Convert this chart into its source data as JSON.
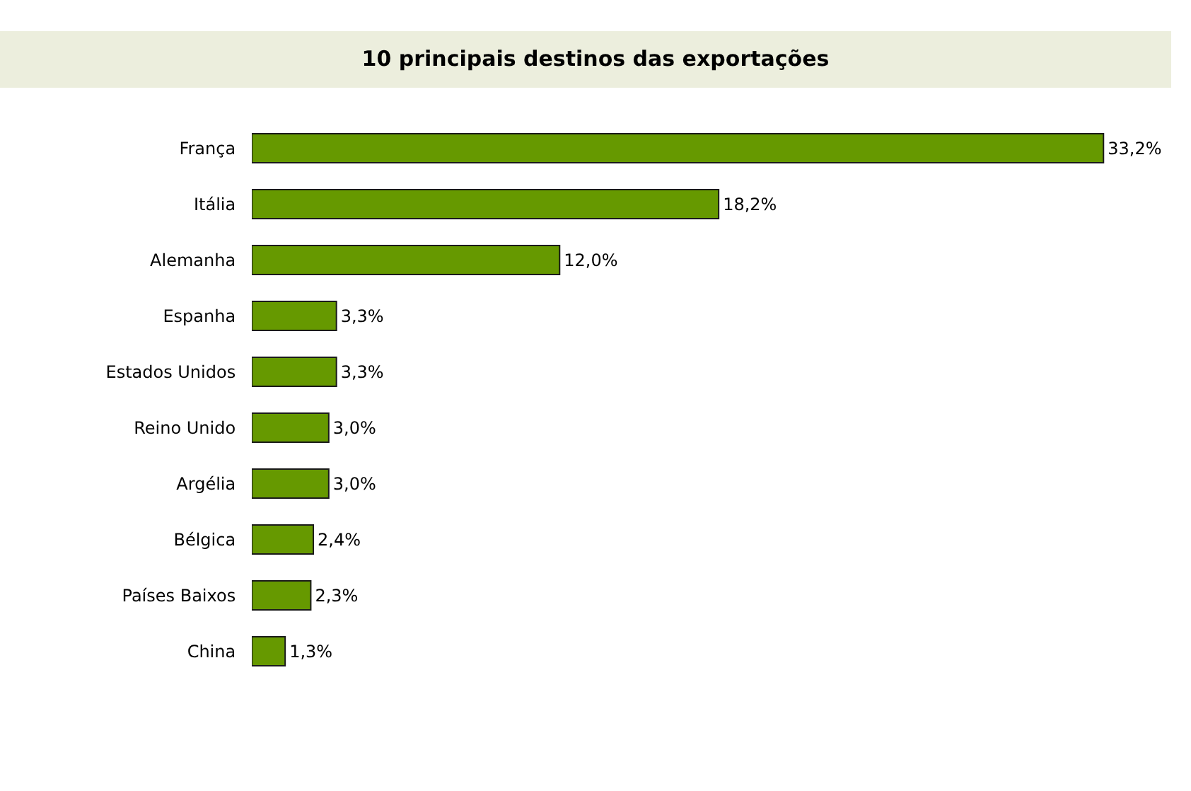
{
  "chart_data": {
    "type": "bar",
    "orientation": "horizontal",
    "title": "10 principais destinos das exportações",
    "categories": [
      "França",
      "Itália",
      "Alemanha",
      "Espanha",
      "Estados Unidos",
      "Reino Unido",
      "Argélia",
      "Bélgica",
      "Países Baixos",
      "China"
    ],
    "values": [
      33.2,
      18.2,
      12.0,
      3.3,
      3.3,
      3.0,
      3.0,
      2.4,
      2.3,
      1.3
    ],
    "value_labels": [
      "33,2%",
      "18,2%",
      "12,0%",
      "3,3%",
      "3,3%",
      "3,0%",
      "3,0%",
      "2,4%",
      "2,3%",
      "1,3%"
    ],
    "color": "#669900"
  }
}
